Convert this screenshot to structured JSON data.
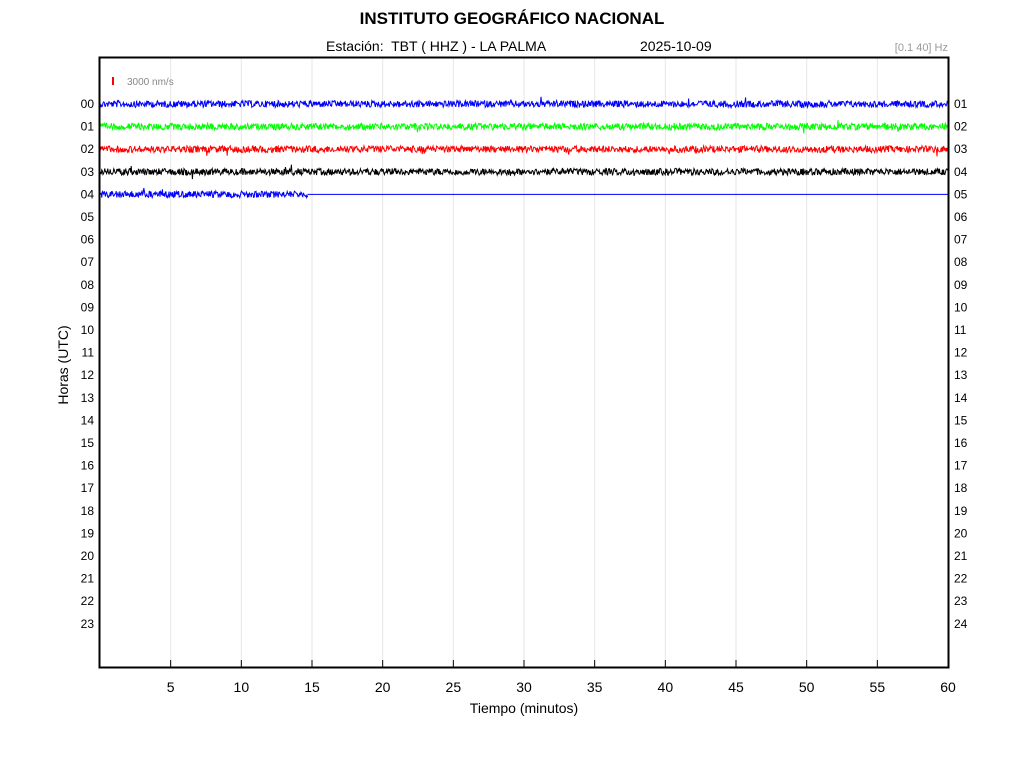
{
  "header": {
    "title": "INSTITUTO GEOGRÁFICO NACIONAL",
    "station": "Estación:  TBT ( HHZ ) - LA PALMA",
    "date": "2025-10-09",
    "band": "[0.1 40] Hz"
  },
  "scale": {
    "label": "3000 nm/s",
    "color": "#ff0000"
  },
  "chart_data": {
    "type": "line",
    "title": "INSTITUTO GEOGRÁFICO NACIONAL",
    "xlabel": "Tiempo (minutos)",
    "ylabel": "Horas (UTC)",
    "xlim": [
      0,
      60
    ],
    "x_ticks": [
      5,
      10,
      15,
      20,
      25,
      30,
      35,
      40,
      45,
      50,
      55,
      60
    ],
    "left_hours": [
      "00",
      "01",
      "02",
      "03",
      "04",
      "05",
      "06",
      "07",
      "08",
      "09",
      "10",
      "11",
      "12",
      "13",
      "14",
      "15",
      "16",
      "17",
      "18",
      "19",
      "20",
      "21",
      "22",
      "23"
    ],
    "right_hours": [
      "01",
      "02",
      "03",
      "04",
      "05",
      "06",
      "07",
      "08",
      "09",
      "10",
      "11",
      "12",
      "13",
      "14",
      "15",
      "16",
      "17",
      "18",
      "19",
      "20",
      "21",
      "22",
      "23",
      "24"
    ],
    "grid": true,
    "traces": [
      {
        "hour": 0,
        "color": "#0000ff",
        "end_minute": 60,
        "amplitude": 1.0
      },
      {
        "hour": 1,
        "color": "#00ff00",
        "end_minute": 60,
        "amplitude": 1.0
      },
      {
        "hour": 2,
        "color": "#ff0000",
        "end_minute": 60,
        "amplitude": 1.0
      },
      {
        "hour": 3,
        "color": "#000000",
        "end_minute": 60,
        "amplitude": 1.0
      },
      {
        "hour": 4,
        "color": "#0000ff",
        "end_minute": 14.7,
        "amplitude": 1.0,
        "flat_to": 60
      }
    ]
  }
}
